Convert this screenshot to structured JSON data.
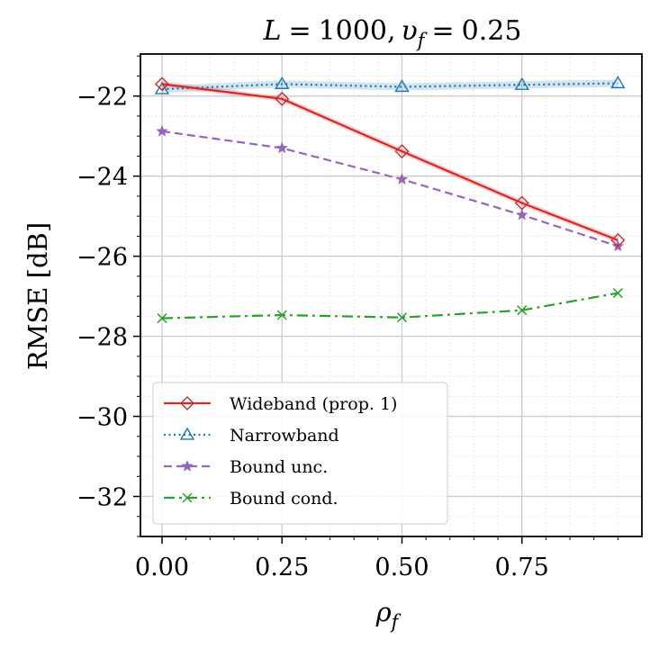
{
  "chart_data": {
    "type": "line",
    "title": "L = 1000, υ_f = 0.25",
    "title_parts": {
      "L": "L",
      "equals": "=",
      "value1": "1000,",
      "upsilon": "υ",
      "sub": "f",
      "value2": "0.25"
    },
    "xlabel": "ρ",
    "xlabel_sub": "f",
    "ylabel": "RMSE [dB]",
    "xlim": [
      -0.045,
      1.0
    ],
    "ylim": [
      -33.0,
      -20.95
    ],
    "x_ticks": [
      0.0,
      0.25,
      0.5,
      0.75
    ],
    "x_tick_labels": [
      "0.00",
      "0.25",
      "0.50",
      "0.75"
    ],
    "y_ticks": [
      -32,
      -30,
      -28,
      -26,
      -24,
      -22
    ],
    "y_tick_labels": [
      "−32",
      "−30",
      "−28",
      "−26",
      "−24",
      "−22"
    ],
    "x": [
      0.0,
      0.25,
      0.5,
      0.75,
      0.95
    ],
    "grid": true,
    "legend_position": "bottom-left",
    "series": [
      {
        "name": "Wideband (prop. 1)",
        "color": "#d62728",
        "marker": "diamond",
        "linestyle": "solid",
        "values": [
          -21.7,
          -22.07,
          -23.38,
          -24.67,
          -25.6
        ]
      },
      {
        "name": "Narrowband",
        "color": "#1f77b4",
        "marker": "triangle",
        "linestyle": "dotted",
        "values": [
          -21.83,
          -21.7,
          -21.77,
          -21.72,
          -21.68
        ]
      },
      {
        "name": "Bound unc.",
        "color": "#9467bd",
        "marker": "star",
        "linestyle": "dashed",
        "values": [
          -22.88,
          -23.3,
          -24.08,
          -24.97,
          -25.75
        ]
      },
      {
        "name": "Bound cond.",
        "color": "#2ca02c",
        "marker": "x",
        "linestyle": "dashdot",
        "values": [
          -27.55,
          -27.47,
          -27.53,
          -27.35,
          -26.92
        ]
      }
    ]
  }
}
